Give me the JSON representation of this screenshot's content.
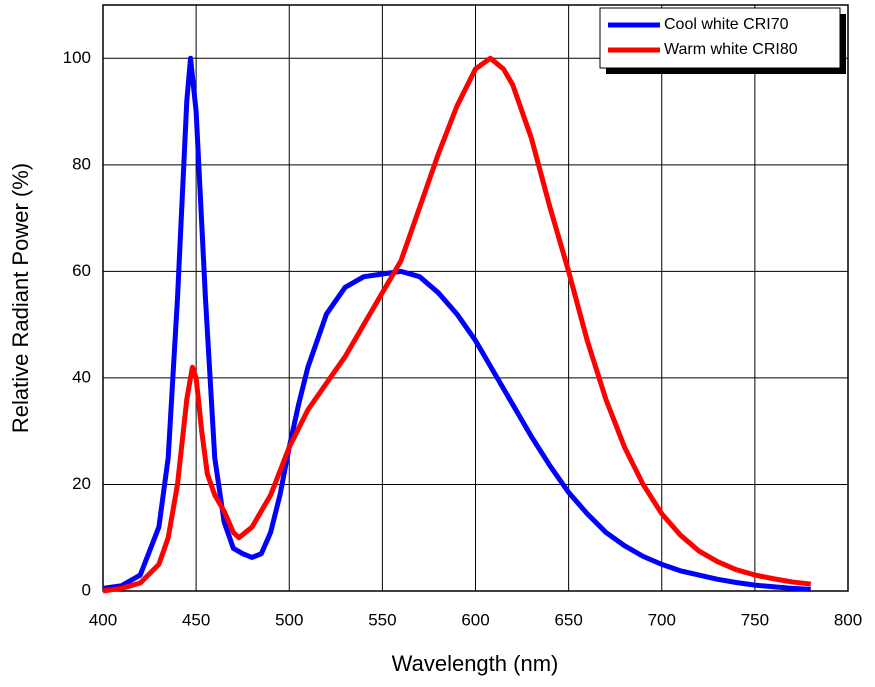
{
  "chart_data": {
    "type": "line",
    "xlabel": "Wavelength (nm)",
    "ylabel": "Relative Radiant Power (%)",
    "xlim": [
      400,
      800
    ],
    "xticks": [
      400,
      450,
      500,
      550,
      600,
      650,
      700,
      750,
      800
    ],
    "ylim": [
      0,
      110
    ],
    "yticks": [
      0,
      20,
      40,
      60,
      80,
      100
    ],
    "grid": true,
    "legend": "upper right",
    "series": [
      {
        "name": "Cool white CRI70",
        "color": "#0000ff",
        "x": [
          400,
          410,
          420,
          430,
          435,
          440,
          445,
          447,
          450,
          455,
          460,
          465,
          470,
          475,
          480,
          485,
          490,
          495,
          500,
          505,
          510,
          520,
          530,
          540,
          550,
          560,
          570,
          580,
          590,
          600,
          610,
          620,
          630,
          640,
          650,
          660,
          670,
          680,
          690,
          700,
          710,
          720,
          730,
          740,
          750,
          760,
          770,
          780
        ],
        "values": [
          0.5,
          1,
          3,
          12,
          25,
          55,
          92,
          100,
          90,
          55,
          25,
          13,
          8,
          7,
          6.3,
          7,
          11,
          18,
          27,
          35,
          42,
          52,
          57,
          59,
          59.5,
          60,
          59,
          56,
          52,
          47,
          41,
          35,
          29,
          23.5,
          18.5,
          14.5,
          11,
          8.5,
          6.5,
          5,
          3.8,
          3,
          2.2,
          1.6,
          1.1,
          0.8,
          0.5,
          0.3
        ]
      },
      {
        "name": "Warm white CRI80",
        "color": "#ff0000",
        "x": [
          400,
          410,
          420,
          430,
          435,
          440,
          445,
          448,
          450,
          453,
          456,
          460,
          465,
          470,
          473,
          480,
          490,
          500,
          510,
          520,
          530,
          540,
          550,
          560,
          570,
          580,
          590,
          600,
          608,
          615,
          620,
          630,
          640,
          650,
          660,
          670,
          680,
          690,
          700,
          710,
          720,
          730,
          740,
          750,
          760,
          770,
          780
        ],
        "values": [
          0,
          0.5,
          1.5,
          5,
          10,
          20,
          36,
          42,
          40,
          30,
          22,
          18,
          15,
          11,
          10,
          12,
          18,
          27,
          34,
          39,
          44,
          50,
          56,
          62,
          72,
          82,
          91,
          98,
          100,
          98,
          95,
          85,
          72,
          60,
          47,
          36,
          27,
          20,
          14.5,
          10.5,
          7.5,
          5.5,
          4,
          3,
          2.3,
          1.7,
          1.3
        ]
      }
    ]
  }
}
